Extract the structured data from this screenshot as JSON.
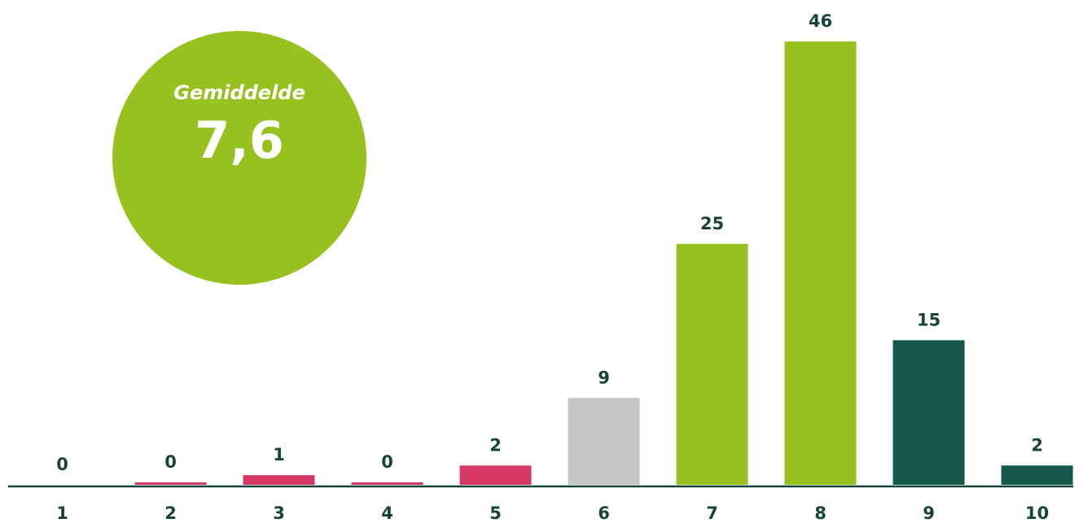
{
  "average": {
    "label": "Gemiddelde",
    "value": "7,6"
  },
  "chart_data": {
    "type": "bar",
    "categories": [
      "1",
      "2",
      "3",
      "4",
      "5",
      "6",
      "7",
      "8",
      "9",
      "10"
    ],
    "values": [
      0,
      0,
      1,
      0,
      2,
      9,
      25,
      46,
      15,
      2
    ],
    "value_labels": [
      "0",
      "0",
      "1",
      "0",
      "2",
      "9",
      "25",
      "46",
      "15",
      "2"
    ],
    "bar_colors": [
      "#d63a64",
      "#d63a64",
      "#d63a64",
      "#d63a64",
      "#d63a64",
      "#c6c5c5",
      "#97c11f",
      "#97c11f",
      "#16584c",
      "#16584c"
    ],
    "ylim": [
      0,
      46
    ],
    "grid": false,
    "axis_color": "#16443a",
    "label_color": "#16443a"
  }
}
